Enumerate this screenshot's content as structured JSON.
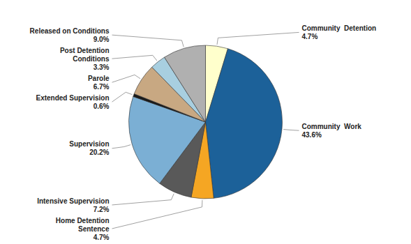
{
  "chart_data": {
    "type": "pie",
    "categories": [
      "Community  Detention",
      "Community  Work",
      "Home Detention\nSentence",
      "Intensive Supervision",
      "Supervision",
      "Extended Supervision",
      "Parole",
      "Post Detention\nConditions",
      "Released on Conditions"
    ],
    "values": [
      4.7,
      43.6,
      4.7,
      7.2,
      20.2,
      0.6,
      6.7,
      3.3,
      9.0
    ],
    "value_labels": [
      "4.7%",
      "43.6%",
      "4.7%",
      "7.2%",
      "20.2%",
      "0.6%",
      "6.7%",
      "3.3%",
      "9.0%"
    ],
    "colors": [
      "#ffffcc",
      "#1c6199",
      "#f5a623",
      "#595959",
      "#7bafd4",
      "#1a1a1a",
      "#c8a882",
      "#a8cfe0",
      "#b0b0b0"
    ],
    "data_labels": true
  }
}
